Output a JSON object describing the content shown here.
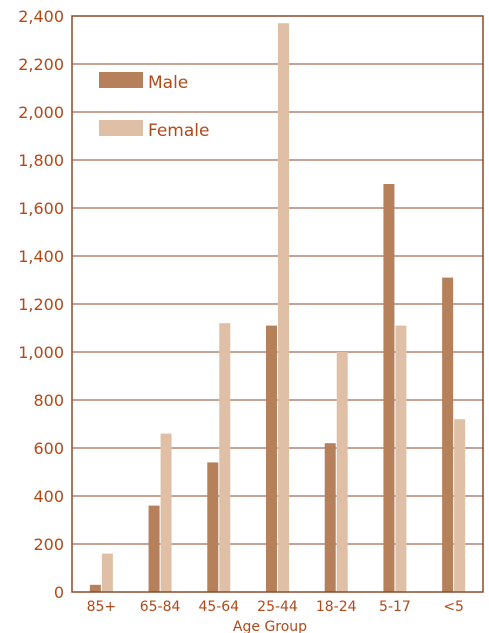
{
  "colors": {
    "male": "#b5805a",
    "female": "#dfc0a6",
    "axis": "#8a4a2a",
    "text": "#b04a1a"
  },
  "chart_data": {
    "type": "bar",
    "title": "",
    "xlabel": "Age Group",
    "ylabel": "",
    "categories": [
      "85+",
      "65-84",
      "45-64",
      "25-44",
      "18-24",
      "5-17",
      "<5"
    ],
    "series": [
      {
        "name": "Male",
        "values": [
          30,
          360,
          540,
          1110,
          620,
          1700,
          1310
        ]
      },
      {
        "name": "Female",
        "values": [
          160,
          660,
          1120,
          2370,
          1000,
          1110,
          720
        ]
      }
    ],
    "ylim": [
      0,
      2400
    ],
    "yticks": [
      0,
      200,
      400,
      600,
      800,
      1000,
      1200,
      1400,
      1600,
      1800,
      2000,
      2200,
      2400
    ],
    "ytick_labels": [
      "0",
      "200",
      "400",
      "600",
      "800",
      "1,000",
      "1,200",
      "1,400",
      "1,600",
      "1,800",
      "2,000",
      "2,200",
      "2,400"
    ],
    "grid": true,
    "legend": {
      "position": "top-left",
      "entries": [
        "Male",
        "Female"
      ]
    }
  }
}
